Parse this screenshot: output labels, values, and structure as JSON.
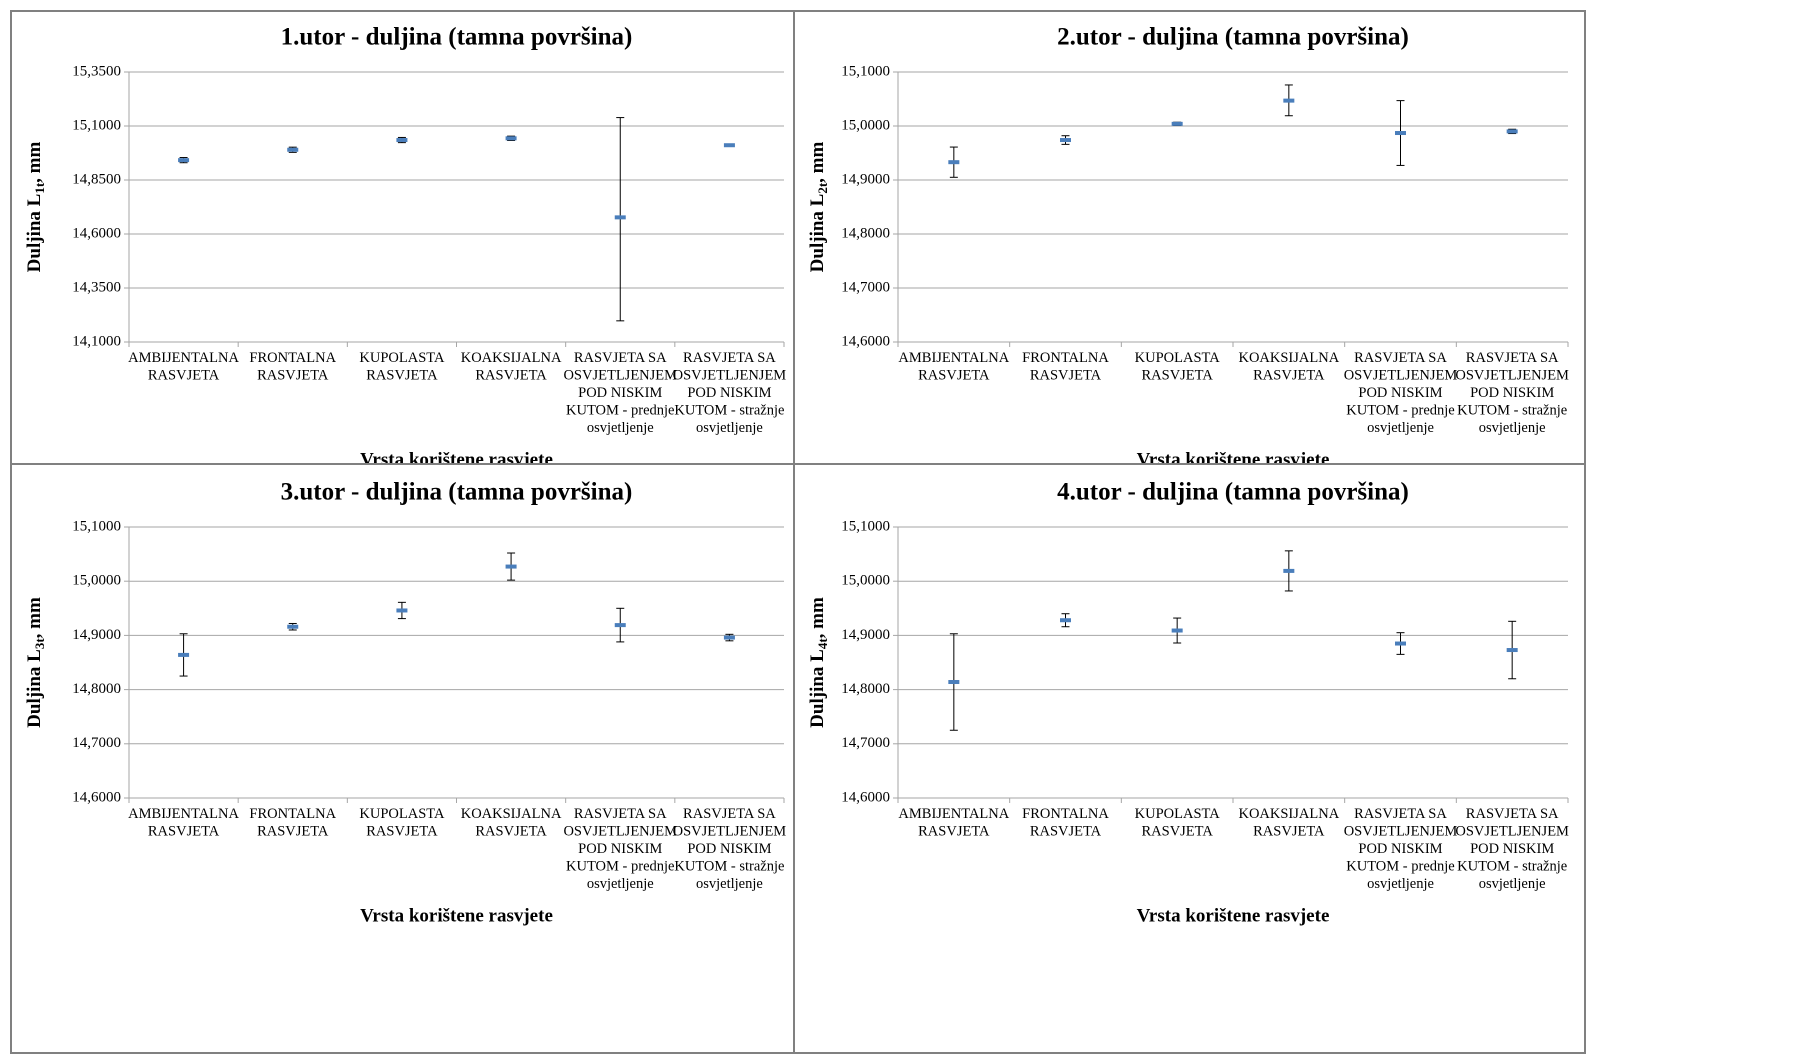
{
  "categories": [
    [
      "AMBIJENTALNA",
      "RASVJETA"
    ],
    [
      "FRONTALNA",
      "RASVJETA"
    ],
    [
      "KUPOLASTA",
      "RASVJETA"
    ],
    [
      "KOAKSIJALNA",
      "RASVJETA"
    ],
    [
      "RASVJETA SA",
      "OSVJETLJENJEM",
      "POD NISKIM",
      "KUTOM - prednje",
      "osvjetljenje"
    ],
    [
      "RASVJETA SA",
      "OSVJETLJENJEM",
      "POD NISKIM",
      "KUTOM  - stražnje",
      "osvjetljenje"
    ]
  ],
  "colors": {
    "marker": "#4a7ebb",
    "errorbar": "#000000",
    "gridline": "#a6a6a6",
    "border": "#808080"
  },
  "chart_data": [
    {
      "type": "scatter",
      "title": "1.utor - duljina (tamna površina)",
      "xlabel": "Vrsta korištene rasvjete",
      "ylabel": {
        "base": "Duljina L",
        "sub": "1t",
        "unit": ", mm"
      },
      "yticks": [
        "14,1000",
        "14,3500",
        "14,6000",
        "14,8500",
        "15,1000",
        "15,3500"
      ],
      "ylim": [
        14.1,
        15.35
      ],
      "values": [
        14.942,
        14.99,
        15.035,
        15.043,
        14.677,
        15.011
      ],
      "err_low": [
        14.93,
        14.978,
        15.023,
        15.033,
        14.198,
        15.009
      ],
      "err_high": [
        14.954,
        15.002,
        15.047,
        15.053,
        15.139,
        15.013
      ]
    },
    {
      "type": "scatter",
      "title": "2.utor - duljina (tamna površina)",
      "xlabel": "Vrsta korištene rasvjete",
      "ylabel": {
        "base": "Duljina L",
        "sub": "2t",
        "unit": ", mm"
      },
      "yticks": [
        "14,6000",
        "14,7000",
        "14,8000",
        "14,9000",
        "15,0000",
        "15,1000"
      ],
      "ylim": [
        14.6,
        15.1
      ],
      "values": [
        14.933,
        14.974,
        15.004,
        15.047,
        14.987,
        14.99
      ],
      "err_low": [
        14.905,
        14.966,
        15.001,
        15.019,
        14.927,
        14.986
      ],
      "err_high": [
        14.961,
        14.982,
        15.007,
        15.076,
        15.047,
        14.994
      ]
    },
    {
      "type": "scatter",
      "title": "3.utor - duljina (tamna površina)",
      "xlabel": "Vrsta korištene rasvjete",
      "ylabel": {
        "base": "Duljina L",
        "sub": "3t",
        "unit": ", mm"
      },
      "yticks": [
        "14,6000",
        "14,7000",
        "14,8000",
        "14,9000",
        "15,0000",
        "15,1000"
      ],
      "ylim": [
        14.6,
        15.1
      ],
      "values": [
        14.864,
        14.916,
        14.946,
        15.027,
        14.919,
        14.896
      ],
      "err_low": [
        14.825,
        14.91,
        14.931,
        15.002,
        14.888,
        14.89
      ],
      "err_high": [
        14.903,
        14.922,
        14.961,
        15.052,
        14.95,
        14.902
      ]
    },
    {
      "type": "scatter",
      "title": "4.utor - duljina (tamna površina)",
      "xlabel": "Vrsta korištene rasvjete",
      "ylabel": {
        "base": "Duljina L",
        "sub": "4t",
        "unit": ", mm"
      },
      "yticks": [
        "14,6000",
        "14,7000",
        "14,8000",
        "14,9000",
        "15,0000",
        "15,1000"
      ],
      "ylim": [
        14.6,
        15.1
      ],
      "values": [
        14.814,
        14.928,
        14.909,
        15.019,
        14.885,
        14.873
      ],
      "err_low": [
        14.725,
        14.916,
        14.886,
        14.982,
        14.865,
        14.82
      ],
      "err_high": [
        14.903,
        14.94,
        14.932,
        15.056,
        14.905,
        14.926
      ]
    }
  ]
}
